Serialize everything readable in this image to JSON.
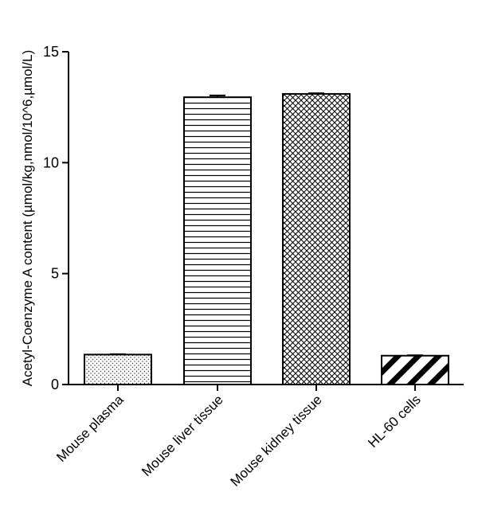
{
  "chart_data": {
    "type": "bar",
    "title": "",
    "xlabel": "",
    "ylabel": "Acetyl-Coenzyme A content (µmol/kg,nmol/10^6,µmol/L)",
    "ylim": [
      0,
      15
    ],
    "yticks": [
      0,
      5,
      10,
      15
    ],
    "categories": [
      "Mouse plasma",
      "Mouse liver tissue",
      "Mouse kidney tissue",
      "HL-60 cells"
    ],
    "values": [
      1.35,
      12.95,
      13.1,
      1.3
    ],
    "errors": [
      0.02,
      0.08,
      0.03,
      0.02
    ],
    "patterns": [
      "dots",
      "horizontal-lines",
      "crosshatch",
      "wide-diagonal"
    ],
    "grid": false,
    "legend": "none"
  }
}
